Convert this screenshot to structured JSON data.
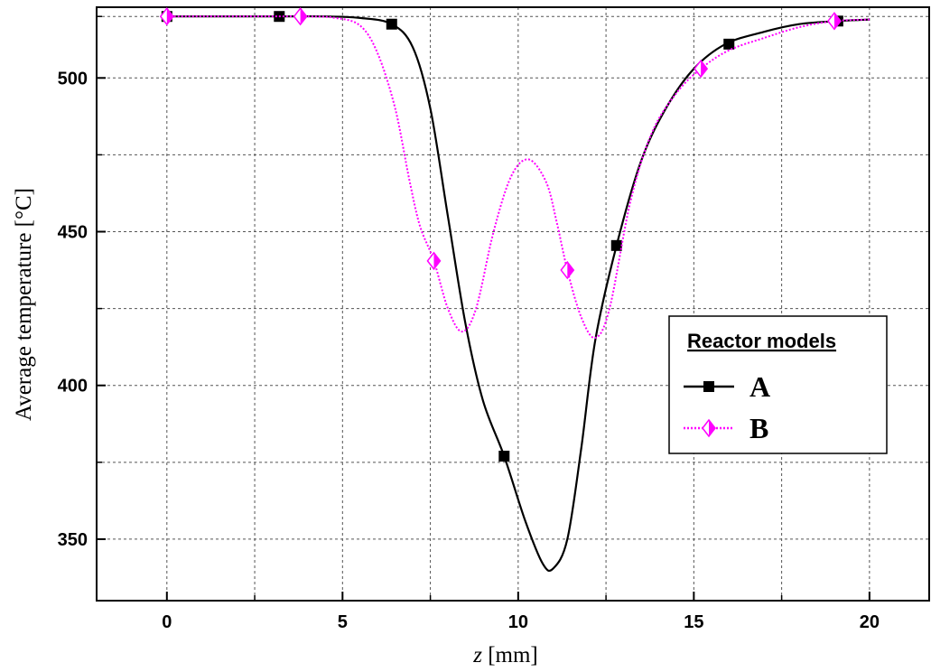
{
  "chart_data": {
    "type": "line",
    "xlabel_var": "z",
    "xlabel_unit": " [mm]",
    "ylabel": "Average temperature [°C]",
    "xlim": [
      -2,
      21.7
    ],
    "ylim": [
      330,
      523
    ],
    "xticks": [
      0,
      5,
      10,
      15,
      20
    ],
    "yticks": [
      350,
      400,
      450,
      500
    ],
    "xminor": [
      2.5,
      7.5,
      12.5,
      17.5
    ],
    "yminor": [
      375,
      425,
      475,
      520
    ],
    "grid": true,
    "legend": {
      "title": "Reactor models",
      "placement": "right"
    },
    "series": [
      {
        "name": "A",
        "color": "#000000",
        "marker": "square",
        "line_style": "solid",
        "curve": [
          [
            0,
            520
          ],
          [
            3,
            520
          ],
          [
            4.5,
            520
          ],
          [
            5.5,
            519.5
          ],
          [
            6.4,
            517.5
          ],
          [
            7.0,
            510
          ],
          [
            7.5,
            490
          ],
          [
            8.0,
            455
          ],
          [
            8.5,
            420
          ],
          [
            9.0,
            395
          ],
          [
            9.6,
            377
          ],
          [
            10.2,
            356
          ],
          [
            10.7,
            342
          ],
          [
            11.0,
            340.5
          ],
          [
            11.4,
            350
          ],
          [
            11.8,
            380
          ],
          [
            12.2,
            415
          ],
          [
            12.8,
            445.5
          ],
          [
            13.5,
            473
          ],
          [
            14.2,
            490
          ],
          [
            15.0,
            503
          ],
          [
            15.9,
            511
          ],
          [
            17.0,
            515
          ],
          [
            18.0,
            517.5
          ],
          [
            19.1,
            518.5
          ],
          [
            20.0,
            519
          ]
        ],
        "markers": [
          [
            0,
            520
          ],
          [
            3.2,
            520
          ],
          [
            6.4,
            517.5
          ],
          [
            9.6,
            377
          ],
          [
            12.8,
            445.5
          ],
          [
            16.0,
            511
          ],
          [
            19.1,
            518.5
          ]
        ]
      },
      {
        "name": "B",
        "color": "#ff00ff",
        "marker": "half-filled diamond",
        "line_style": "dotted",
        "curve": [
          [
            0,
            520
          ],
          [
            3.8,
            520
          ],
          [
            4.8,
            519.5
          ],
          [
            5.5,
            517
          ],
          [
            6.0,
            508
          ],
          [
            6.5,
            490
          ],
          [
            6.9,
            467
          ],
          [
            7.2,
            452
          ],
          [
            7.6,
            440.5
          ],
          [
            8.0,
            425
          ],
          [
            8.4,
            417.5
          ],
          [
            8.8,
            425
          ],
          [
            9.3,
            450
          ],
          [
            9.8,
            468
          ],
          [
            10.3,
            473.5
          ],
          [
            10.8,
            466
          ],
          [
            11.1,
            453
          ],
          [
            11.4,
            437.5
          ],
          [
            11.8,
            422
          ],
          [
            12.2,
            415.5
          ],
          [
            12.6,
            425
          ],
          [
            13.2,
            460
          ],
          [
            13.8,
            482
          ],
          [
            14.5,
            495
          ],
          [
            15.2,
            503
          ],
          [
            16.0,
            509
          ],
          [
            17.0,
            513
          ],
          [
            18.0,
            516.5
          ],
          [
            19.0,
            518.5
          ],
          [
            20.0,
            519
          ]
        ],
        "markers": [
          [
            0,
            520
          ],
          [
            3.8,
            520
          ],
          [
            7.6,
            440.5
          ],
          [
            11.4,
            437.5
          ],
          [
            15.2,
            503
          ],
          [
            19.0,
            518.5
          ]
        ]
      }
    ]
  }
}
